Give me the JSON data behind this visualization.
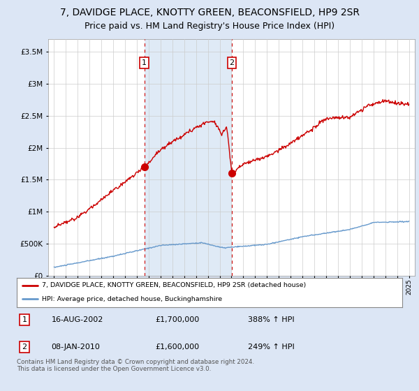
{
  "title": "7, DAVIDGE PLACE, KNOTTY GREEN, BEACONSFIELD, HP9 2SR",
  "subtitle": "Price paid vs. HM Land Registry's House Price Index (HPI)",
  "title_fontsize": 10,
  "subtitle_fontsize": 9,
  "bg_color": "#dce6f5",
  "plot_bg_color": "#ffffff",
  "shade_color": "#dce8f5",
  "red_color": "#cc0000",
  "blue_color": "#6699cc",
  "sale1_year": 2002.63,
  "sale1_price": 1700000,
  "sale1_label": "1",
  "sale1_date": "16-AUG-2002",
  "sale1_pct": "388%",
  "sale2_year": 2010.03,
  "sale2_price": 1600000,
  "sale2_label": "2",
  "sale2_date": "08-JAN-2010",
  "sale2_pct": "249%",
  "legend_line1": "7, DAVIDGE PLACE, KNOTTY GREEN, BEACONSFIELD, HP9 2SR (detached house)",
  "legend_line2": "HPI: Average price, detached house, Buckinghamshire",
  "footer": "Contains HM Land Registry data © Crown copyright and database right 2024.\nThis data is licensed under the Open Government Licence v3.0.",
  "xlim": [
    1994.5,
    2025.5
  ],
  "ylim": [
    0,
    3700000
  ],
  "yticks": [
    0,
    500000,
    1000000,
    1500000,
    2000000,
    2500000,
    3000000,
    3500000
  ],
  "xticks": [
    1995,
    1996,
    1997,
    1998,
    1999,
    2000,
    2001,
    2002,
    2003,
    2004,
    2005,
    2006,
    2007,
    2008,
    2009,
    2010,
    2011,
    2012,
    2013,
    2014,
    2015,
    2016,
    2017,
    2018,
    2019,
    2020,
    2021,
    2022,
    2023,
    2024,
    2025
  ]
}
